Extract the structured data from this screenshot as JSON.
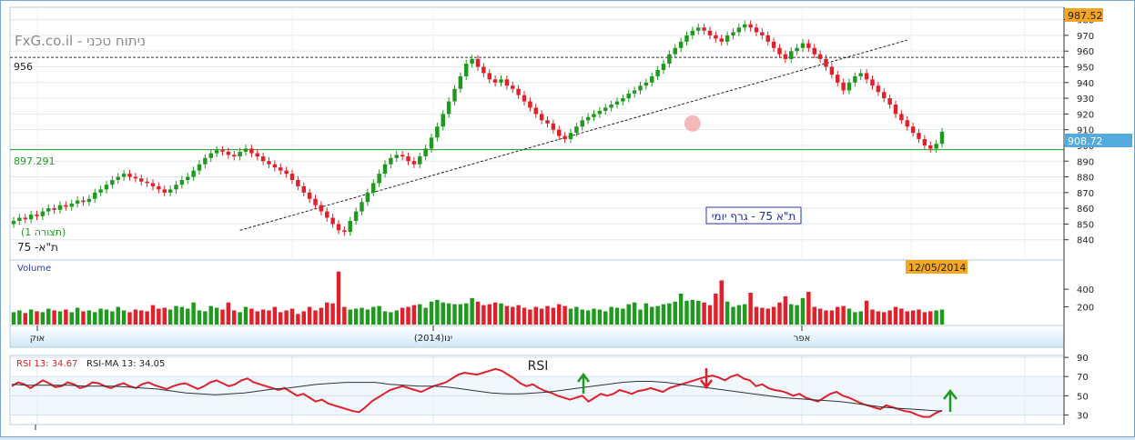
{
  "watermark": "FxG.co.il - ניתוח טכני",
  "chart_title": "ת\"א 75 - גרף יומי",
  "instrument_label": "ת\"א- 75",
  "view_label": "(תצורה 1)",
  "last_price_label": "908.72",
  "resistance_label": "956",
  "support_label": "897.291",
  "top_price_label": "987.52",
  "date_label": "12/05/2014",
  "volume_label": "Volume",
  "rsi_title": "RSI",
  "rsi_legend": {
    "rsi": "RSI 13: 34.67",
    "ma": "RSI-MA 13: 34.05"
  },
  "x_axis_labels": [
    "אוק",
    "ינו(2014)",
    "אפר"
  ],
  "colors": {
    "up": "#1f9a1f",
    "down": "#e0202a",
    "rsi": "#e0202a",
    "rsi_ma": "#333333",
    "accent_box": "#f5a623",
    "price_box": "#55aadd"
  },
  "chart_data": [
    {
      "type": "candlestick",
      "title": "ת\"א 75 - גרף יומי",
      "ylim": [
        830,
        985
      ],
      "y_ticks": [
        840,
        850,
        860,
        870,
        880,
        890,
        900,
        910,
        920,
        930,
        940,
        950,
        960,
        970,
        980
      ],
      "horizontal_lines": [
        956,
        897.291
      ],
      "trendline": [
        [
          39,
          846
        ],
        [
          154,
          967
        ]
      ],
      "highlight_circle": [
        117,
        914
      ],
      "closes": [
        852,
        854,
        853,
        856,
        855,
        858,
        860,
        859,
        862,
        861,
        863,
        865,
        864,
        866,
        870,
        872,
        875,
        878,
        880,
        882,
        880,
        879,
        877,
        876,
        874,
        872,
        870,
        872,
        875,
        878,
        880,
        884,
        888,
        892,
        895,
        897,
        896,
        894,
        893,
        896,
        898,
        895,
        893,
        890,
        888,
        886,
        884,
        882,
        878,
        874,
        870,
        866,
        862,
        858,
        854,
        850,
        846,
        845,
        852,
        858,
        864,
        870,
        876,
        882,
        888,
        892,
        894,
        893,
        890,
        888,
        893,
        898,
        905,
        912,
        920,
        928,
        936,
        944,
        952,
        955,
        950,
        946,
        942,
        940,
        942,
        938,
        936,
        932,
        928,
        924,
        920,
        916,
        914,
        910,
        906,
        904,
        908,
        912,
        916,
        918,
        920,
        922,
        924,
        926,
        928,
        930,
        933,
        935,
        938,
        940,
        944,
        948,
        952,
        958,
        962,
        966,
        970,
        973,
        975,
        973,
        970,
        968,
        966,
        970,
        972,
        975,
        977,
        975,
        972,
        970,
        966,
        962,
        958,
        955,
        960,
        962,
        965,
        962,
        958,
        955,
        950,
        945,
        940,
        935,
        940,
        944,
        946,
        942,
        938,
        934,
        930,
        926,
        920,
        916,
        912,
        908,
        904,
        900,
        898,
        901,
        908.72
      ],
      "price_data_note": "",
      "volume_ylim": [
        0,
        700
      ],
      "volume_ticks": [
        200,
        400
      ],
      "volumes": [
        140,
        160,
        130,
        170,
        150,
        140,
        180,
        160,
        150,
        170,
        140,
        190,
        150,
        160,
        140,
        180,
        170,
        150,
        200,
        160,
        140,
        170,
        160,
        150,
        220,
        180,
        190,
        170,
        210,
        200,
        180,
        250,
        160,
        150,
        210,
        190,
        170,
        250,
        160,
        140,
        200,
        180,
        150,
        170,
        160,
        200,
        140,
        160,
        180,
        120,
        150,
        200,
        160,
        190,
        250,
        240,
        600,
        200,
        170,
        180,
        190,
        170,
        200,
        210,
        150,
        140,
        160,
        190,
        200,
        220,
        230,
        190,
        260,
        280,
        250,
        240,
        230,
        230,
        240,
        300,
        260,
        220,
        230,
        250,
        240,
        210,
        200,
        220,
        190,
        170,
        200,
        180,
        210,
        190,
        230,
        210,
        180,
        200,
        170,
        160,
        180,
        170,
        150,
        200,
        190,
        180,
        230,
        250,
        170,
        240,
        200,
        210,
        230,
        240,
        260,
        350,
        270,
        280,
        270,
        250,
        220,
        350,
        500,
        260,
        200,
        220,
        230,
        360,
        200,
        190,
        180,
        200,
        250,
        320,
        230,
        220,
        300,
        370,
        200,
        180,
        160,
        160,
        200,
        210,
        180,
        140,
        150,
        270,
        170,
        150,
        140,
        160,
        200,
        180,
        150,
        160,
        170,
        140,
        150,
        160,
        170
      ]
    },
    {
      "type": "line",
      "title": "RSI",
      "ylim": [
        20,
        92
      ],
      "y_ticks": [
        30,
        50,
        70,
        90
      ],
      "bands": [
        30,
        70
      ],
      "series": [
        {
          "name": "RSI 13: 34.67",
          "values": [
            60,
            64,
            62,
            58,
            62,
            66,
            63,
            59,
            60,
            64,
            62,
            58,
            60,
            64,
            63,
            60,
            58,
            61,
            63,
            60,
            58,
            62,
            64,
            61,
            59,
            57,
            60,
            62,
            63,
            60,
            57,
            60,
            64,
            66,
            63,
            60,
            62,
            66,
            68,
            64,
            62,
            60,
            58,
            56,
            58,
            54,
            50,
            52,
            48,
            44,
            46,
            42,
            40,
            38,
            36,
            34,
            33,
            38,
            44,
            48,
            52,
            56,
            58,
            60,
            58,
            56,
            54,
            57,
            60,
            62,
            64,
            68,
            72,
            74,
            73,
            72,
            74,
            76,
            78,
            76,
            72,
            68,
            63,
            60,
            62,
            58,
            55,
            53,
            50,
            48,
            46,
            48,
            50,
            44,
            48,
            52,
            50,
            52,
            56,
            54,
            52,
            55,
            56,
            58,
            56,
            54,
            58,
            60,
            62,
            64,
            66,
            68,
            70,
            71,
            69,
            66,
            70,
            72,
            68,
            66,
            60,
            62,
            58,
            56,
            55,
            53,
            50,
            52,
            48,
            46,
            44,
            48,
            52,
            54,
            50,
            48,
            45,
            42,
            40,
            38,
            36,
            40,
            38,
            36,
            34,
            33,
            30,
            28,
            28,
            32,
            34.67
          ]
        },
        {
          "name": "RSI-MA 13: 34.05",
          "values": [
            62,
            61,
            61,
            61,
            61,
            60,
            60,
            60,
            59,
            58,
            57,
            55,
            53,
            52,
            51,
            52,
            53,
            55,
            57,
            58,
            60,
            62,
            63,
            64,
            64,
            64,
            62,
            61,
            60,
            60,
            59,
            57,
            55,
            53,
            52,
            52,
            53,
            54,
            56,
            58,
            60,
            62,
            64,
            65,
            65,
            64,
            62,
            60,
            58,
            56,
            54,
            52,
            50,
            48,
            47,
            46,
            45,
            44,
            42,
            40,
            38,
            37,
            36,
            35,
            34.05
          ]
        }
      ]
    }
  ]
}
